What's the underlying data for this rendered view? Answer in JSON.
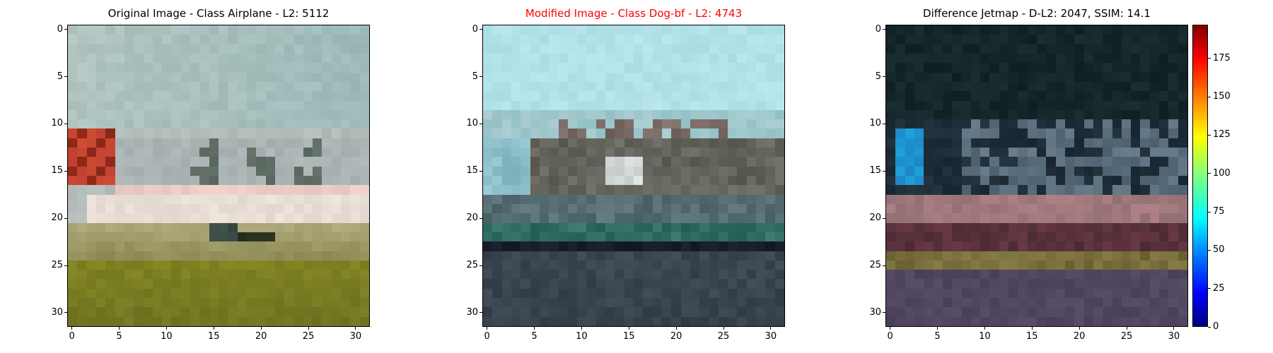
{
  "chart_data": [
    {
      "type": "heatmap",
      "id": "original",
      "title": "Original Image - Class Airplane - L2: 5112",
      "title_color": "#000000",
      "x_ticks": [
        0,
        5,
        10,
        15,
        20,
        25,
        30
      ],
      "y_ticks": [
        0,
        5,
        10,
        15,
        20,
        25,
        30
      ],
      "image_size": [
        32,
        32
      ]
    },
    {
      "type": "heatmap",
      "id": "modified",
      "title": "Modified Image - Class Dog-bf - L2: 4743",
      "title_color": "#ff0000",
      "x_ticks": [
        0,
        5,
        10,
        15,
        20,
        25,
        30
      ],
      "y_ticks": [
        0,
        5,
        10,
        15,
        20,
        25,
        30
      ],
      "image_size": [
        32,
        32
      ]
    },
    {
      "type": "heatmap",
      "id": "difference",
      "title": "Difference Jetmap - D-L2: 2047, SSIM: 14.1",
      "title_color": "#000000",
      "x_ticks": [
        0,
        5,
        10,
        15,
        20,
        25,
        30
      ],
      "y_ticks": [
        0,
        5,
        10,
        15,
        20,
        25,
        30
      ],
      "image_size": [
        32,
        32
      ],
      "colorbar": {
        "colormap": "jet",
        "ticks": [
          0,
          25,
          50,
          75,
          100,
          125,
          150,
          175
        ],
        "range": [
          0,
          197
        ]
      }
    }
  ]
}
